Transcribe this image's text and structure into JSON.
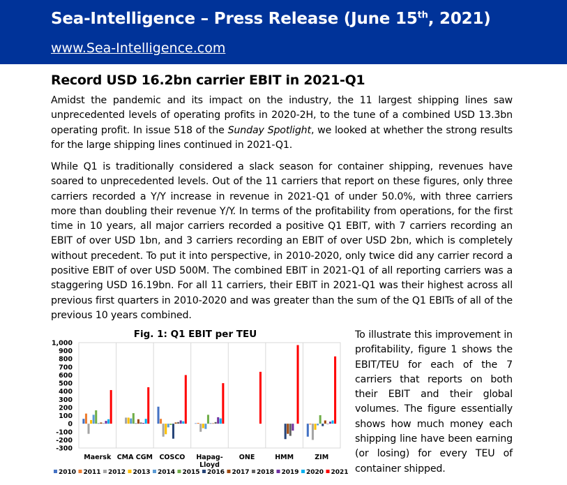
{
  "header": {
    "title": "Sea-Intelligence – Press Release (June 15",
    "title_sup": "th",
    "title_end": ", 2021)",
    "url": "www.Sea-Intelligence.com"
  },
  "heading": "Record USD 16.2bn carrier EBIT in 2021-Q1",
  "paragraph1": {
    "before": "Amidst the pandemic and its impact on the industry, the 11 largest shipping lines saw unprecedented levels of operating profits in 2020-2H, to the tune of a combined USD 13.3bn operating profit. In issue 518 of the ",
    "italic": "Sunday Spotlight",
    "after": ", we looked at whether the strong results for the large shipping lines continued in 2021-Q1."
  },
  "paragraph2": "While Q1 is traditionally considered a slack season for container shipping, revenues have soared to unprecedented levels. Out of the 11 carriers that report on these figures, only three carriers recorded a Y/Y increase in revenue in 2021-Q1 of under 50.0%, with three carriers more than doubling their revenue Y/Y. In terms of the profitability from operations, for the first time in 10 years, all major carriers recorded a positive Q1 EBIT, with 7 carriers recording an EBIT of over USD 1bn, and 3 carriers recording an EBIT of over USD 2bn, which is completely without precedent. To put it into perspective, in 2010-2020, only twice did any carrier record a positive EBIT of over USD 500M. The combined EBIT in 2021-Q1 of all reporting carriers was a staggering USD 16.19bn. For all 11 carriers, their EBIT in 2021-Q1 was their highest across all previous first quarters in 2010-2020 and was greater than the sum of the Q1 EBITs of all of the previous 10 years combined.",
  "paragraph3": "To illustrate this improvement in profitability, figure 1 shows the EBIT/TEU for each of the 7 carriers that reports on both their EBIT and their global volumes. The figure essentially shows how much money each shipping line have been earning (or losing) for every TEU of container shipped.",
  "chart_data": {
    "type": "bar",
    "title": "Fig. 1: Q1 EBIT per TEU",
    "xlabel": "",
    "ylabel": "",
    "ylim": [
      -300,
      1000
    ],
    "yticks": [
      "-300",
      "-200",
      "-100",
      "0",
      "100",
      "200",
      "300",
      "400",
      "500",
      "600",
      "700",
      "800",
      "900",
      "1,000"
    ],
    "categories": [
      "Maersk",
      "CMA CGM",
      "COSCO",
      "Hapag-Lloyd",
      "ONE",
      "HMM",
      "ZIM"
    ],
    "category_lines": [
      [
        "Maersk"
      ],
      [
        "CMA CGM"
      ],
      [
        "COSCO"
      ],
      [
        "Hapag-",
        "Lloyd"
      ],
      [
        "ONE"
      ],
      [
        "HMM"
      ],
      [
        "ZIM"
      ]
    ],
    "legend_position": "bottom",
    "series": [
      {
        "name": "2010",
        "color": "#4472C4",
        "values": [
          60,
          null,
          210,
          5,
          null,
          null,
          -160
        ]
      },
      {
        "name": "2011",
        "color": "#ED7D31",
        "values": [
          125,
          null,
          60,
          10,
          null,
          null,
          -10
        ]
      },
      {
        "name": "2012",
        "color": "#A5A5A5",
        "values": [
          -125,
          75,
          -160,
          -100,
          null,
          null,
          -200
        ]
      },
      {
        "name": "2013",
        "color": "#FFC000",
        "values": [
          45,
          75,
          -130,
          -55,
          null,
          null,
          -75
        ]
      },
      {
        "name": "2014",
        "color": "#5B9BD5",
        "values": [
          110,
          65,
          -45,
          -65,
          null,
          null,
          -20
        ]
      },
      {
        "name": "2015",
        "color": "#70AD47",
        "values": [
          165,
          130,
          -15,
          110,
          null,
          null,
          105
        ]
      },
      {
        "name": "2016",
        "color": "#264478",
        "values": [
          5,
          5,
          -185,
          5,
          null,
          -190,
          -30
        ]
      },
      {
        "name": "2017",
        "color": "#9E480E",
        "values": [
          15,
          55,
          15,
          5,
          null,
          -125,
          40
        ]
      },
      {
        "name": "2018",
        "color": "#636363",
        "values": [
          5,
          15,
          20,
          20,
          null,
          -150,
          -5
        ]
      },
      {
        "name": "2019",
        "color": "#7030A0",
        "values": [
          35,
          10,
          40,
          80,
          null,
          -85,
          25
        ]
      },
      {
        "name": "2020",
        "color": "#00B0F0",
        "values": [
          55,
          60,
          30,
          65,
          null,
          null,
          40
        ]
      },
      {
        "name": "2021",
        "color": "#FF0000",
        "values": [
          415,
          450,
          600,
          500,
          640,
          970,
          830
        ]
      }
    ]
  }
}
